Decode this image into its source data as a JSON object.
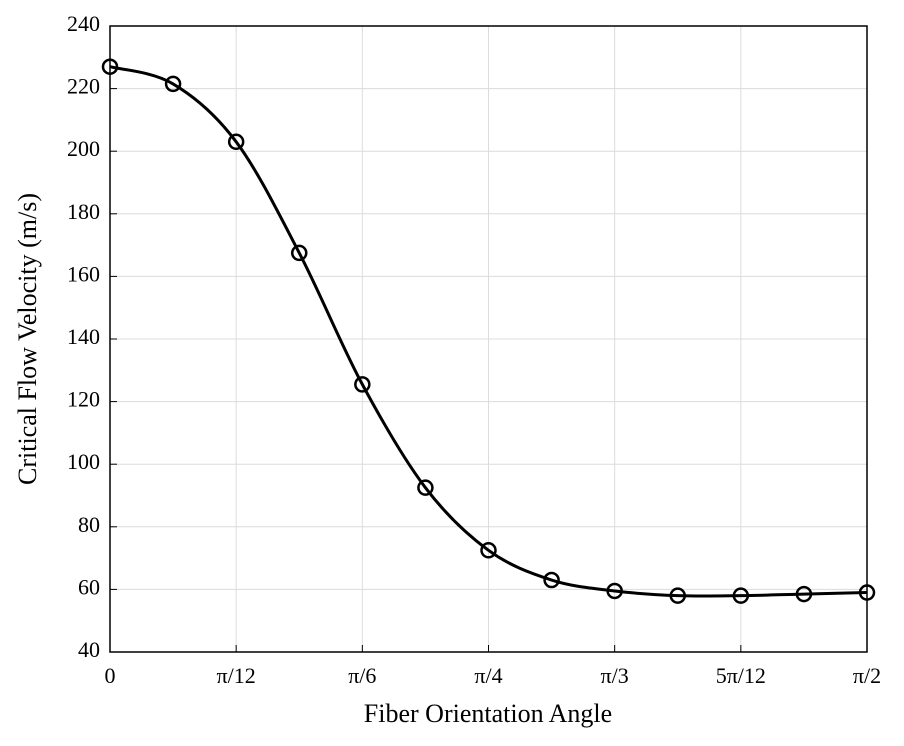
{
  "chart_data": {
    "type": "line",
    "xlabel": "Fiber Orientation Angle",
    "ylabel": "Critical Flow Velocity (m/s)",
    "x": [
      0,
      0.1309,
      0.2618,
      0.3927,
      0.5236,
      0.6545,
      0.7854,
      0.9163,
      1.0472,
      1.1781,
      1.309,
      1.4399,
      1.5708
    ],
    "values": [
      227,
      221.5,
      203,
      167.5,
      125.5,
      92.5,
      72.5,
      63,
      59.5,
      58,
      58,
      58.5,
      59
    ],
    "color": "#000000",
    "markers": true,
    "xlim": [
      0,
      1.5708
    ],
    "xticks": [
      0,
      {
        "value": 0.2618,
        "label": "π/12"
      },
      {
        "value": 0.5236,
        "label": "π/6"
      },
      {
        "value": 0.7854,
        "label": "π/4"
      },
      {
        "value": 1.0472,
        "label": "π/3"
      },
      {
        "value": 1.309,
        "label": "5π/12"
      },
      {
        "value": 1.5708,
        "label": "π/2"
      }
    ],
    "ylim": [
      40,
      240
    ],
    "yticks": [
      40,
      60,
      80,
      100,
      120,
      140,
      160,
      180,
      200,
      220,
      240
    ],
    "grid": true
  }
}
